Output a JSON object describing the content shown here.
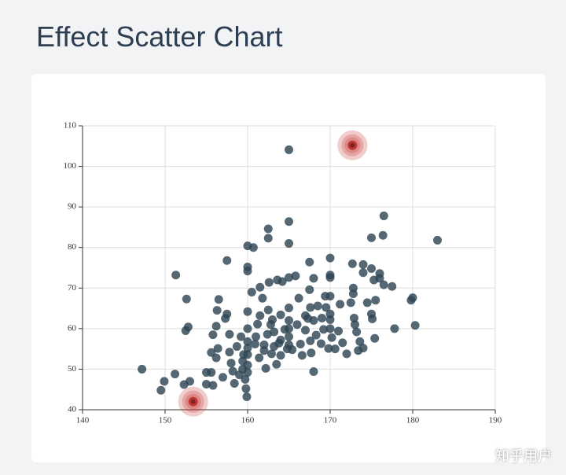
{
  "header": {
    "title": "Effect Scatter Chart"
  },
  "watermark": "知乎用户",
  "chart_data": {
    "type": "scatter",
    "xlim": [
      140,
      190
    ],
    "xticks": [
      140,
      150,
      160,
      170,
      180,
      190
    ],
    "ylim": [
      40,
      110
    ],
    "yticks": [
      40,
      50,
      60,
      70,
      80,
      90,
      100,
      110
    ],
    "grid": true,
    "series": [
      {
        "type": "scatter",
        "color": "#2f4554",
        "x": [
          147.2,
          149.5,
          149.9,
          151.2,
          151.3,
          152.3,
          152.5,
          152.6,
          152.8,
          153,
          155,
          155.6,
          155,
          155.8,
          155.6,
          155.8,
          156.2,
          156.3,
          156.5,
          156.2,
          156.4,
          157,
          157.3,
          157.5,
          157.5,
          157.8,
          157.8,
          158,
          158.2,
          158.4,
          158.7,
          159,
          159.2,
          159.4,
          159.4,
          159.5,
          159.7,
          159.8,
          159.9,
          160,
          160,
          160,
          160,
          160,
          160,
          160,
          160,
          160,
          160,
          160.5,
          160.7,
          160.9,
          161,
          161.2,
          161.4,
          161.5,
          161.5,
          161.8,
          162,
          162,
          162.2,
          162.4,
          162.5,
          162.5,
          162.5,
          162.6,
          162.8,
          162.9,
          163,
          163.2,
          163.2,
          163.5,
          163.6,
          163.8,
          164,
          164,
          164,
          164.2,
          164.5,
          164.8,
          165,
          165,
          165,
          165,
          165,
          165,
          165,
          165,
          165,
          165.4,
          165.8,
          166,
          166.2,
          166.4,
          166.6,
          167,
          167,
          167.3,
          167.5,
          167.5,
          167.6,
          167.6,
          167.7,
          168,
          168,
          168,
          168.3,
          168.5,
          168.9,
          169,
          169.2,
          169.4,
          169.5,
          169.8,
          170,
          170,
          170,
          170,
          170,
          170,
          170,
          170.2,
          170.6,
          171,
          171.2,
          171.5,
          172,
          172.5,
          172.7,
          172.8,
          172.8,
          172.9,
          173,
          173.2,
          173.4,
          173.6,
          174,
          174,
          174,
          174.5,
          175,
          175,
          175,
          175.1,
          175.3,
          175.4,
          175.5,
          176,
          176,
          176.4,
          176.5,
          176.5,
          177.5,
          177.8,
          179.8,
          180,
          180.3,
          183
        ],
        "values": [
          50,
          44.8,
          47,
          48.8,
          73.2,
          46.2,
          59.5,
          67.3,
          60.4,
          47,
          49.2,
          49.2,
          46.3,
          46,
          54.1,
          58.5,
          60.6,
          64.5,
          67.2,
          52.8,
          55.1,
          48,
          62.5,
          63.6,
          76.8,
          54.2,
          58.6,
          51.5,
          49.5,
          46.5,
          55.6,
          48.6,
          58,
          50,
          52,
          53.6,
          47.5,
          45.2,
          43.2,
          80.4,
          75.2,
          74.2,
          64.2,
          60,
          56.8,
          55.2,
          53.6,
          51,
          49.2,
          69,
          80,
          56.2,
          58,
          61.1,
          52.8,
          63.2,
          70.2,
          67.5,
          56,
          54.6,
          50.2,
          58.6,
          64.6,
          82.3,
          84.6,
          71.4,
          61,
          53.8,
          62.2,
          59.2,
          55.6,
          51.2,
          72,
          56.4,
          57.2,
          63.4,
          53.4,
          71.6,
          59.8,
          55,
          104.1,
          86.4,
          81,
          72.6,
          65.1,
          62,
          60,
          58,
          56,
          54.8,
          73,
          61,
          67.5,
          56.2,
          53.4,
          59.6,
          63.2,
          62.5,
          76.4,
          69.6,
          65.2,
          57,
          54,
          49.4,
          62,
          72.4,
          58.4,
          65.6,
          56.3,
          62.6,
          59.8,
          68,
          65.2,
          55.1,
          77.4,
          73.2,
          72.6,
          68,
          63.6,
          62.2,
          60,
          57.8,
          55,
          59.4,
          66,
          56.5,
          53.8,
          66.4,
          76,
          70,
          68.6,
          62.6,
          61,
          59.2,
          54.6,
          56.8,
          75.8,
          73.8,
          55.2,
          66.4,
          82.4,
          74.8,
          63.6,
          62.4,
          72,
          57.6,
          67,
          73.6,
          72.4,
          83,
          87.8,
          70.8,
          70.4,
          60,
          67,
          67.6,
          60.8,
          81.8
        ]
      },
      {
        "type": "effectScatter",
        "color": "#c23531",
        "x": [
          172.7,
          153.4
        ],
        "values": [
          105.2,
          42
        ]
      }
    ]
  }
}
